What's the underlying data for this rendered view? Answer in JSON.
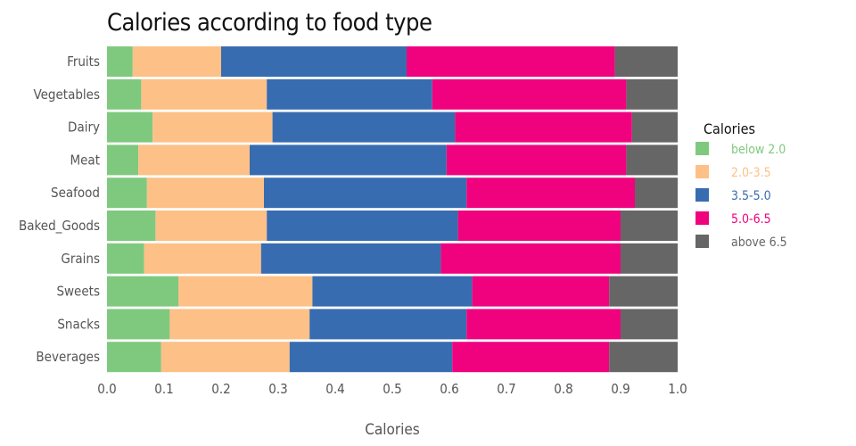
{
  "chart_data": {
    "type": "bar",
    "orientation": "horizontal",
    "stacked": true,
    "title": "Calories according to food type",
    "xlabel": "Calories",
    "ylabel": "",
    "xlim": [
      0,
      1.0
    ],
    "xticks": [
      "0.0",
      "0.1",
      "0.2",
      "0.3",
      "0.4",
      "0.5",
      "0.6",
      "0.7",
      "0.8",
      "0.9",
      "1.0"
    ],
    "categories": [
      "Fruits",
      "Vegetables",
      "Dairy",
      "Meat",
      "Seafood",
      "Baked_Goods",
      "Grains",
      "Sweets",
      "Snacks",
      "Beverages"
    ],
    "series": [
      {
        "name": "below 2.0",
        "color": "#7fc97f",
        "values": [
          0.045,
          0.06,
          0.08,
          0.055,
          0.07,
          0.085,
          0.065,
          0.125,
          0.11,
          0.095
        ]
      },
      {
        "name": "2.0-3.5",
        "color": "#fdc086",
        "values": [
          0.155,
          0.22,
          0.21,
          0.195,
          0.205,
          0.195,
          0.205,
          0.235,
          0.245,
          0.225
        ]
      },
      {
        "name": "3.5-5.0",
        "color": "#386cb0",
        "values": [
          0.325,
          0.29,
          0.32,
          0.345,
          0.355,
          0.335,
          0.315,
          0.28,
          0.275,
          0.285
        ]
      },
      {
        "name": "5.0-6.5",
        "color": "#f0027f",
        "values": [
          0.365,
          0.34,
          0.31,
          0.315,
          0.295,
          0.285,
          0.315,
          0.24,
          0.27,
          0.275
        ]
      },
      {
        "name": "above 6.5",
        "color": "#666666",
        "values": [
          0.11,
          0.09,
          0.08,
          0.09,
          0.075,
          0.1,
          0.1,
          0.12,
          0.1,
          0.12
        ]
      }
    ],
    "legend": {
      "title": "Calories",
      "position": "right"
    },
    "grid": false
  }
}
